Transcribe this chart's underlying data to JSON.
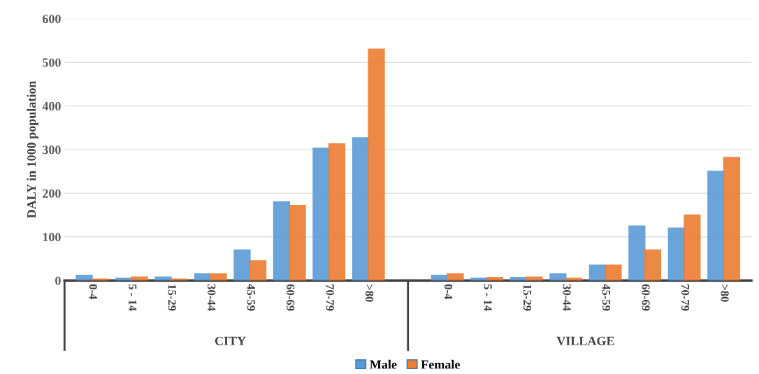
{
  "chart_data": {
    "type": "bar",
    "ylabel": "DALY in 1000 population",
    "categories": [
      "0-4",
      "5 - 14",
      "15-29",
      "30-44",
      "45-59",
      "60-69",
      "70-79",
      ">80",
      "0-4",
      "5 - 14",
      "15-29",
      "30-44",
      "45-59",
      "60-69",
      "70-79",
      ">80"
    ],
    "series": [
      {
        "name": "Male",
        "color": "#5b9bd5",
        "values": [
          12,
          5,
          8,
          15,
          70,
          180,
          303,
          327,
          12,
          5,
          7,
          15,
          35,
          125,
          120,
          250
        ]
      },
      {
        "name": "Female",
        "color": "#ed7d31",
        "values": [
          3,
          8,
          3,
          15,
          45,
          172,
          313,
          530,
          15,
          7,
          8,
          5,
          35,
          70,
          150,
          282
        ]
      }
    ],
    "annotations": [
      "CITY",
      "VILLAGE"
    ],
    "ylim": [
      0,
      600
    ],
    "yticks": [
      0,
      100,
      200,
      300,
      400,
      500,
      600
    ],
    "grid": "y",
    "legend": "bottom"
  }
}
